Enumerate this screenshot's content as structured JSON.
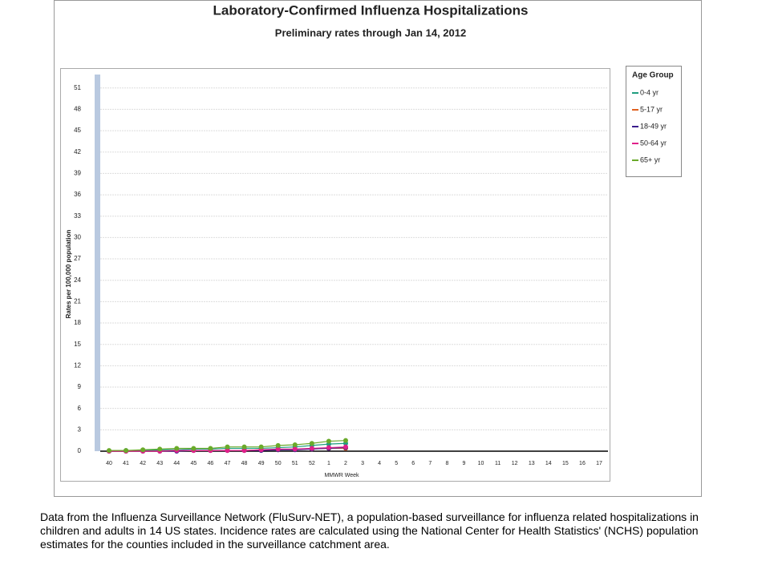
{
  "chart_data": {
    "type": "line",
    "title": "Laboratory-Confirmed Influenza Hospitalizations",
    "subtitle": "Preliminary rates through Jan 14, 2012",
    "y_label": "Rates per 100,000 population",
    "x_label": "MMWR Week",
    "legend_title": "Age Group",
    "legend_position": "right",
    "grid": true,
    "categories": [
      "40",
      "41",
      "42",
      "43",
      "44",
      "45",
      "46",
      "47",
      "48",
      "49",
      "50",
      "51",
      "52",
      "1",
      "2",
      "3",
      "4",
      "5",
      "6",
      "7",
      "8",
      "9",
      "10",
      "11",
      "12",
      "13",
      "14",
      "15",
      "16",
      "17"
    ],
    "ylim": [
      0,
      53
    ],
    "yticks": [
      0,
      3,
      6,
      9,
      12,
      15,
      18,
      21,
      24,
      27,
      30,
      33,
      36,
      39,
      42,
      45,
      48,
      51
    ],
    "series": [
      {
        "name": "0-4 yr",
        "color": "#1f9e7f",
        "values": [
          0,
          0.1,
          0.1,
          0.2,
          0.2,
          0.3,
          0.3,
          0.4,
          0.4,
          0.4,
          0.5,
          0.6,
          0.8,
          1.0,
          1.1,
          null,
          null,
          null,
          null,
          null,
          null,
          null,
          null,
          null,
          null,
          null,
          null,
          null,
          null,
          null
        ]
      },
      {
        "name": "5-17 yr",
        "color": "#e0601f",
        "values": [
          0,
          0,
          0,
          0,
          0.1,
          0.1,
          0.1,
          0.1,
          0.1,
          0.2,
          0.2,
          0.3,
          0.3,
          0.4,
          0.4,
          null,
          null,
          null,
          null,
          null,
          null,
          null,
          null,
          null,
          null,
          null,
          null,
          null,
          null,
          null
        ]
      },
      {
        "name": "18-49 yr",
        "color": "#3b1c8c",
        "values": [
          0,
          0,
          0,
          0,
          0,
          0.1,
          0.1,
          0.1,
          0.1,
          0.1,
          0.2,
          0.2,
          0.3,
          0.4,
          0.5,
          null,
          null,
          null,
          null,
          null,
          null,
          null,
          null,
          null,
          null,
          null,
          null,
          null,
          null,
          null
        ]
      },
      {
        "name": "50-64 yr",
        "color": "#e0208a",
        "values": [
          0,
          0,
          0,
          0,
          0.1,
          0.1,
          0.1,
          0.1,
          0.1,
          0.2,
          0.3,
          0.3,
          0.4,
          0.5,
          0.6,
          null,
          null,
          null,
          null,
          null,
          null,
          null,
          null,
          null,
          null,
          null,
          null,
          null,
          null,
          null
        ]
      },
      {
        "name": "65+ yr",
        "color": "#6aaa2a",
        "values": [
          0.1,
          0.1,
          0.2,
          0.3,
          0.4,
          0.4,
          0.4,
          0.6,
          0.6,
          0.6,
          0.8,
          0.9,
          1.1,
          1.4,
          1.5,
          null,
          null,
          null,
          null,
          null,
          null,
          null,
          null,
          null,
          null,
          null,
          null,
          null,
          null,
          null
        ]
      }
    ]
  },
  "footnote": "Data from the Influenza Surveillance Network (FluSurv-NET), a population-based surveillance for influenza related hospitalizations in children and adults in 14 US states. Incidence rates are calculated using the National Center for Health Statistics' (NCHS) population estimates for the counties included in the surveillance catchment area."
}
